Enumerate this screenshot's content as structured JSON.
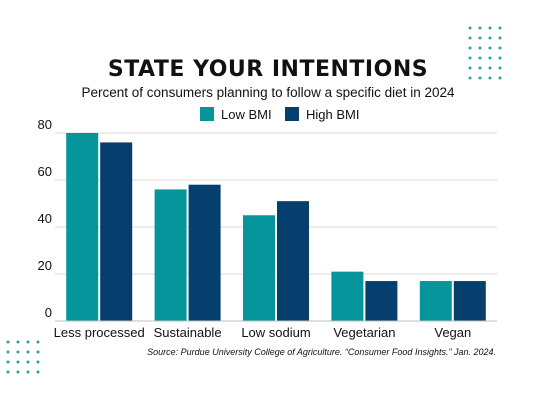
{
  "chart_data": {
    "type": "bar",
    "title": "STATE YOUR INTENTIONS",
    "subtitle": "Percent of consumers planning to follow a specific diet in 2024",
    "categories": [
      "Less processed",
      "Sustainable",
      "Low sodium",
      "Vegetarian",
      "Vegan"
    ],
    "series": [
      {
        "name": "Low BMI",
        "values": [
          80,
          56,
          45,
          21,
          17
        ],
        "color": "#05959a"
      },
      {
        "name": "High BMI",
        "values": [
          76,
          58,
          51,
          17,
          17
        ],
        "color": "#063f6e"
      }
    ],
    "yticks": [
      "0",
      "20",
      "40",
      "60",
      "80"
    ],
    "ylim": [
      0,
      80
    ],
    "grid": true,
    "legend_position": "top-center",
    "source": "Source: Purdue University College of Agriculture. “Consumer Food Insights.” Jan. 2024."
  },
  "decoration": {
    "dot_color": "#2aa39a"
  }
}
